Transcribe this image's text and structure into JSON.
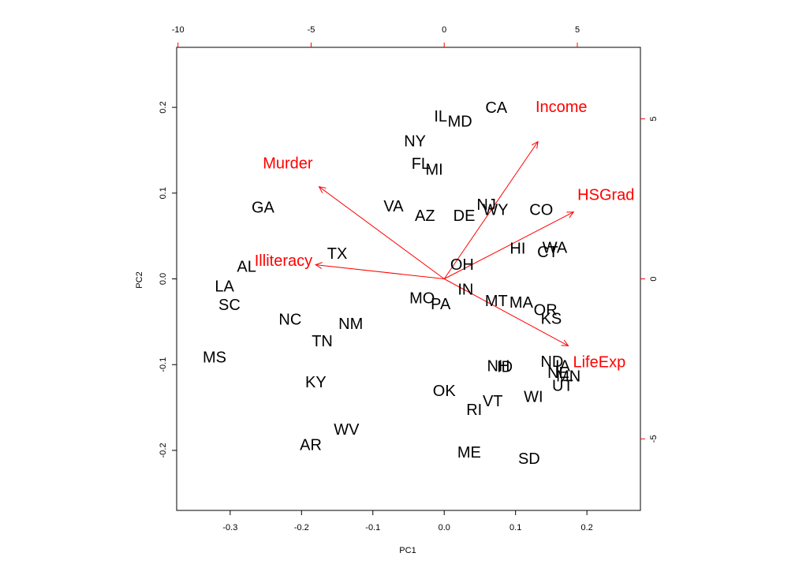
{
  "chart_data": {
    "type": "scatter",
    "title": "",
    "xlabel": "PC1",
    "ylabel": "PC2",
    "xlim": [
      -0.375,
      0.275
    ],
    "ylim": [
      -0.27,
      0.27
    ],
    "bottom_ticks": [
      -0.3,
      -0.2,
      -0.1,
      0.0,
      0.1,
      0.2
    ],
    "bottom_tick_labels": [
      "-0.3",
      "-0.2",
      "-0.1",
      "0.0",
      "0.1",
      "0.2"
    ],
    "left_ticks": [
      -0.2,
      -0.1,
      0.0,
      0.1,
      0.2
    ],
    "left_tick_labels": [
      "-0.2",
      "-0.1",
      "0.0",
      "0.1",
      "0.2"
    ],
    "top_ticks": [
      -10,
      -5,
      0,
      5
    ],
    "top_tick_labels": [
      "-10",
      "-5",
      "0",
      "5"
    ],
    "right_ticks": [
      -5,
      0,
      5
    ],
    "right_tick_labels": [
      "-5",
      "0",
      "5"
    ],
    "secondary_scale": 26.8,
    "grid": false,
    "colors": {
      "observations": "#000000",
      "variables": "#ff0000",
      "box": "#000000"
    },
    "observations": [
      {
        "label": "CA",
        "x": 0.073,
        "y": 0.199
      },
      {
        "label": "IL",
        "x": -0.005,
        "y": 0.189
      },
      {
        "label": "MD",
        "x": 0.022,
        "y": 0.183
      },
      {
        "label": "NY",
        "x": -0.041,
        "y": 0.16
      },
      {
        "label": "FL",
        "x": -0.033,
        "y": 0.134
      },
      {
        "label": "MI",
        "x": -0.014,
        "y": 0.127
      },
      {
        "label": "VA",
        "x": -0.071,
        "y": 0.084
      },
      {
        "label": "GA",
        "x": -0.254,
        "y": 0.083
      },
      {
        "label": "AZ",
        "x": -0.027,
        "y": 0.073
      },
      {
        "label": "DE",
        "x": 0.028,
        "y": 0.073
      },
      {
        "label": "NJ",
        "x": 0.059,
        "y": 0.086
      },
      {
        "label": "WY",
        "x": 0.072,
        "y": 0.08
      },
      {
        "label": "CO",
        "x": 0.136,
        "y": 0.08
      },
      {
        "label": "TX",
        "x": -0.15,
        "y": 0.029
      },
      {
        "label": "HI",
        "x": 0.103,
        "y": 0.035
      },
      {
        "label": "WA",
        "x": 0.155,
        "y": 0.036
      },
      {
        "label": "CT",
        "x": 0.145,
        "y": 0.031
      },
      {
        "label": "OH",
        "x": 0.025,
        "y": 0.016
      },
      {
        "label": "AL",
        "x": -0.277,
        "y": 0.014
      },
      {
        "label": "LA",
        "x": -0.308,
        "y": -0.009
      },
      {
        "label": "IN",
        "x": 0.03,
        "y": -0.013
      },
      {
        "label": "SC",
        "x": -0.301,
        "y": -0.031
      },
      {
        "label": "MO",
        "x": -0.031,
        "y": -0.023
      },
      {
        "label": "PA",
        "x": -0.005,
        "y": -0.03
      },
      {
        "label": "MT",
        "x": 0.073,
        "y": -0.026
      },
      {
        "label": "MA",
        "x": 0.108,
        "y": -0.028
      },
      {
        "label": "OR",
        "x": 0.142,
        "y": -0.037
      },
      {
        "label": "KS",
        "x": 0.15,
        "y": -0.047
      },
      {
        "label": "NC",
        "x": -0.216,
        "y": -0.048
      },
      {
        "label": "NM",
        "x": -0.131,
        "y": -0.053
      },
      {
        "label": "TN",
        "x": -0.171,
        "y": -0.073
      },
      {
        "label": "MS",
        "x": -0.322,
        "y": -0.092
      },
      {
        "label": "ND",
        "x": 0.151,
        "y": -0.097
      },
      {
        "label": "NH",
        "x": 0.076,
        "y": -0.102
      },
      {
        "label": "ID",
        "x": 0.085,
        "y": -0.103
      },
      {
        "label": "IA",
        "x": 0.166,
        "y": -0.102
      },
      {
        "label": "NE",
        "x": 0.16,
        "y": -0.11
      },
      {
        "label": "MN",
        "x": 0.174,
        "y": -0.114
      },
      {
        "label": "UT",
        "x": 0.166,
        "y": -0.125
      },
      {
        "label": "KY",
        "x": -0.18,
        "y": -0.121
      },
      {
        "label": "OK",
        "x": 0.0,
        "y": -0.131
      },
      {
        "label": "WI",
        "x": 0.125,
        "y": -0.138
      },
      {
        "label": "VT",
        "x": 0.068,
        "y": -0.143
      },
      {
        "label": "RI",
        "x": 0.042,
        "y": -0.153
      },
      {
        "label": "WV",
        "x": -0.137,
        "y": -0.176
      },
      {
        "label": "AR",
        "x": -0.187,
        "y": -0.194
      },
      {
        "label": "ME",
        "x": 0.035,
        "y": -0.203
      },
      {
        "label": "SD",
        "x": 0.119,
        "y": -0.21
      }
    ],
    "variables": [
      {
        "label": "Income",
        "x": 3.52,
        "y": 4.29
      },
      {
        "label": "Murder",
        "x": -4.7,
        "y": 2.88
      },
      {
        "label": "HSGrad",
        "x": 4.86,
        "y": 2.09
      },
      {
        "label": "Illiteracy",
        "x": -4.83,
        "y": 0.44
      },
      {
        "label": "LifeExp",
        "x": 4.66,
        "y": -2.09
      }
    ]
  }
}
